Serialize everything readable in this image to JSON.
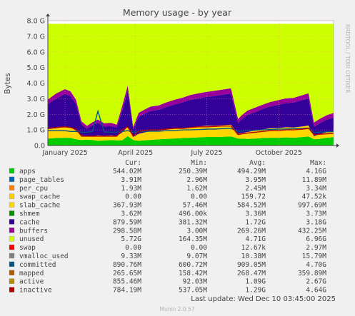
{
  "chart_data": {
    "type": "area",
    "title": "Memory usage - by year",
    "ylabel": "Bytes",
    "xlabel": "",
    "side_label": "RRDTOOL / TOBI OETIKER",
    "footer": "Munin 2.0.57",
    "last_update": "Last update: Wed Dec 10 03:45:00 2025",
    "ylim": [
      0,
      8.0
    ],
    "y_unit": "G",
    "y_ticks": [
      {
        "value": 0,
        "label": "0.0"
      },
      {
        "value": 1,
        "label": "1.0 G"
      },
      {
        "value": 2,
        "label": "2.0 G"
      },
      {
        "value": 3,
        "label": "3.0 G"
      },
      {
        "value": 4,
        "label": "4.0 G"
      },
      {
        "value": 5,
        "label": "5.0 G"
      },
      {
        "value": 6,
        "label": "6.0 G"
      },
      {
        "value": 7,
        "label": "7.0 G"
      },
      {
        "value": 8,
        "label": "8.0 G"
      }
    ],
    "x_range": [
      "2024-12-10",
      "2025-12-10"
    ],
    "x_ticks": [
      {
        "date": "2025-01-01",
        "label": "January 2025"
      },
      {
        "date": "2025-04-01",
        "label": "April 2025"
      },
      {
        "date": "2025-07-01",
        "label": "July 2025"
      },
      {
        "date": "2025-10-01",
        "label": "October 2025"
      }
    ],
    "grid": true,
    "legend_headers": [
      "Cur:",
      "Min:",
      "Avg:",
      "Max:"
    ],
    "legend": [
      {
        "name": "apps",
        "color": "#00cc00",
        "cur": "544.02M",
        "min": "250.39M",
        "avg": "494.29M",
        "max": "4.16G"
      },
      {
        "name": "page_tables",
        "color": "#0066b3",
        "cur": "3.91M",
        "min": "2.96M",
        "avg": "3.95M",
        "max": "11.89M"
      },
      {
        "name": "per_cpu",
        "color": "#ff8000",
        "cur": "1.93M",
        "min": "1.62M",
        "avg": "2.45M",
        "max": "3.34M"
      },
      {
        "name": "swap_cache",
        "color": "#ffcc00",
        "cur": "0.00",
        "min": "0.00",
        "avg": "159.72",
        "max": "47.52k"
      },
      {
        "name": "slab_cache",
        "color": "#ffd700",
        "cur": "367.93M",
        "min": "57.46M",
        "avg": "584.52M",
        "max": "997.69M"
      },
      {
        "name": "shmem",
        "color": "#008f00",
        "cur": "3.62M",
        "min": "496.00k",
        "avg": "3.36M",
        "max": "3.73M"
      },
      {
        "name": "cache",
        "color": "#330099",
        "cur": "879.59M",
        "min": "381.32M",
        "avg": "1.72G",
        "max": "3.18G"
      },
      {
        "name": "buffers",
        "color": "#990099",
        "cur": "298.58M",
        "min": "3.00M",
        "avg": "269.26M",
        "max": "432.25M"
      },
      {
        "name": "unused",
        "color": "#ccff00",
        "cur": "5.72G",
        "min": "164.35M",
        "avg": "4.71G",
        "max": "6.96G"
      },
      {
        "name": "swap",
        "color": "#ff0000",
        "cur": "0.00",
        "min": "0.00",
        "avg": "12.67k",
        "max": "2.97M"
      },
      {
        "name": "vmalloc_used",
        "color": "#808080",
        "cur": "9.33M",
        "min": "9.07M",
        "avg": "10.38M",
        "max": "15.79M"
      },
      {
        "name": "committed",
        "color": "#005782",
        "cur": "890.76M",
        "min": "600.72M",
        "avg": "909.05M",
        "max": "4.70G"
      },
      {
        "name": "mapped",
        "color": "#b35900",
        "cur": "265.65M",
        "min": "158.42M",
        "avg": "268.47M",
        "max": "359.89M"
      },
      {
        "name": "active",
        "color": "#b38f00",
        "cur": "855.46M",
        "min": "92.03M",
        "avg": "1.09G",
        "max": "2.67G"
      },
      {
        "name": "inactive",
        "color": "#b30000",
        "cur": "784.19M",
        "min": "537.05M",
        "avg": "1.29G",
        "max": "4.64G"
      }
    ],
    "series_values_G": {
      "date": [
        "2024-12-10",
        "2024-12-20",
        "2025-01-01",
        "2025-01-08",
        "2025-01-15",
        "2025-01-22",
        "2025-01-29",
        "2025-02-05",
        "2025-02-12",
        "2025-02-20",
        "2025-03-01",
        "2025-03-08",
        "2025-03-15",
        "2025-03-22",
        "2025-03-29",
        "2025-04-05",
        "2025-04-12",
        "2025-04-20",
        "2025-05-01",
        "2025-05-10",
        "2025-05-20",
        "2025-06-01",
        "2025-06-10",
        "2025-06-20",
        "2025-07-01",
        "2025-07-10",
        "2025-07-20",
        "2025-08-01",
        "2025-08-10",
        "2025-08-15",
        "2025-08-22",
        "2025-09-01",
        "2025-09-10",
        "2025-09-20",
        "2025-10-01",
        "2025-10-10",
        "2025-10-20",
        "2025-11-01",
        "2025-11-08",
        "2025-11-15",
        "2025-11-22",
        "2025-12-01",
        "2025-12-10"
      ],
      "apps": [
        0.45,
        0.48,
        0.5,
        0.49,
        0.4,
        0.35,
        0.38,
        0.35,
        0.3,
        0.32,
        0.35,
        0.33,
        0.34,
        0.6,
        0.35,
        0.3,
        0.33,
        0.36,
        0.4,
        0.42,
        0.45,
        0.48,
        0.5,
        0.52,
        0.55,
        0.55,
        0.56,
        0.58,
        0.45,
        0.45,
        0.42,
        0.45,
        0.48,
        0.5,
        0.5,
        0.52,
        0.5,
        0.55,
        0.58,
        0.4,
        0.42,
        0.5,
        0.54
      ],
      "slab_cache": [
        0.6,
        0.62,
        0.7,
        0.68,
        0.55,
        0.3,
        0.2,
        0.25,
        0.35,
        0.3,
        0.3,
        0.28,
        0.5,
        0.6,
        0.2,
        0.45,
        0.5,
        0.55,
        0.55,
        0.6,
        0.62,
        0.65,
        0.68,
        0.7,
        0.72,
        0.72,
        0.74,
        0.75,
        0.3,
        0.35,
        0.45,
        0.5,
        0.55,
        0.6,
        0.62,
        0.65,
        0.65,
        0.68,
        0.7,
        0.2,
        0.3,
        0.35,
        0.37
      ],
      "cache": [
        1.6,
        1.9,
        2.1,
        2.0,
        1.7,
        0.7,
        0.5,
        0.7,
        0.8,
        0.6,
        0.6,
        0.55,
        1.4,
        2.3,
        0.5,
        1.1,
        1.2,
        1.3,
        1.35,
        1.45,
        1.55,
        1.65,
        1.75,
        1.8,
        1.85,
        1.9,
        1.95,
        2.0,
        0.7,
        0.9,
        1.1,
        1.2,
        1.3,
        1.4,
        1.5,
        1.55,
        1.6,
        1.7,
        1.75,
        0.6,
        0.7,
        0.8,
        0.88
      ],
      "buffers": [
        0.3,
        0.32,
        0.32,
        0.3,
        0.28,
        0.2,
        0.18,
        0.2,
        0.22,
        0.2,
        0.2,
        0.18,
        0.3,
        0.35,
        0.15,
        0.25,
        0.26,
        0.28,
        0.28,
        0.29,
        0.3,
        0.3,
        0.31,
        0.32,
        0.32,
        0.33,
        0.33,
        0.34,
        0.25,
        0.26,
        0.27,
        0.28,
        0.28,
        0.29,
        0.3,
        0.3,
        0.31,
        0.31,
        0.32,
        0.27,
        0.28,
        0.29,
        0.3
      ],
      "committed": [
        0.95,
        0.95,
        0.95,
        0.9,
        0.9,
        0.85,
        0.85,
        0.9,
        2.2,
        0.88,
        0.85,
        0.85,
        0.9,
        0.95,
        0.85,
        0.88,
        0.9,
        0.92,
        0.92,
        0.95,
        0.95,
        1.0,
        1.0,
        1.02,
        1.05,
        1.05,
        1.08,
        1.1,
        0.9,
        0.92,
        0.95,
        0.98,
        1.0,
        1.02,
        1.05,
        1.05,
        1.08,
        1.1,
        1.12,
        0.85,
        0.86,
        0.88,
        0.89
      ],
      "inactive": [
        1.1,
        1.15,
        1.2,
        1.15,
        1.05,
        0.6,
        0.6,
        0.6,
        0.6,
        0.6,
        0.6,
        0.6,
        1.0,
        1.2,
        0.6,
        0.9,
        0.95,
        1.0,
        1.0,
        1.05,
        1.1,
        1.1,
        1.15,
        1.2,
        1.2,
        1.22,
        1.25,
        1.25,
        0.7,
        0.75,
        0.8,
        0.85,
        0.9,
        0.95,
        0.95,
        1.0,
        1.0,
        1.05,
        1.1,
        0.7,
        0.72,
        0.75,
        0.78
      ]
    }
  }
}
